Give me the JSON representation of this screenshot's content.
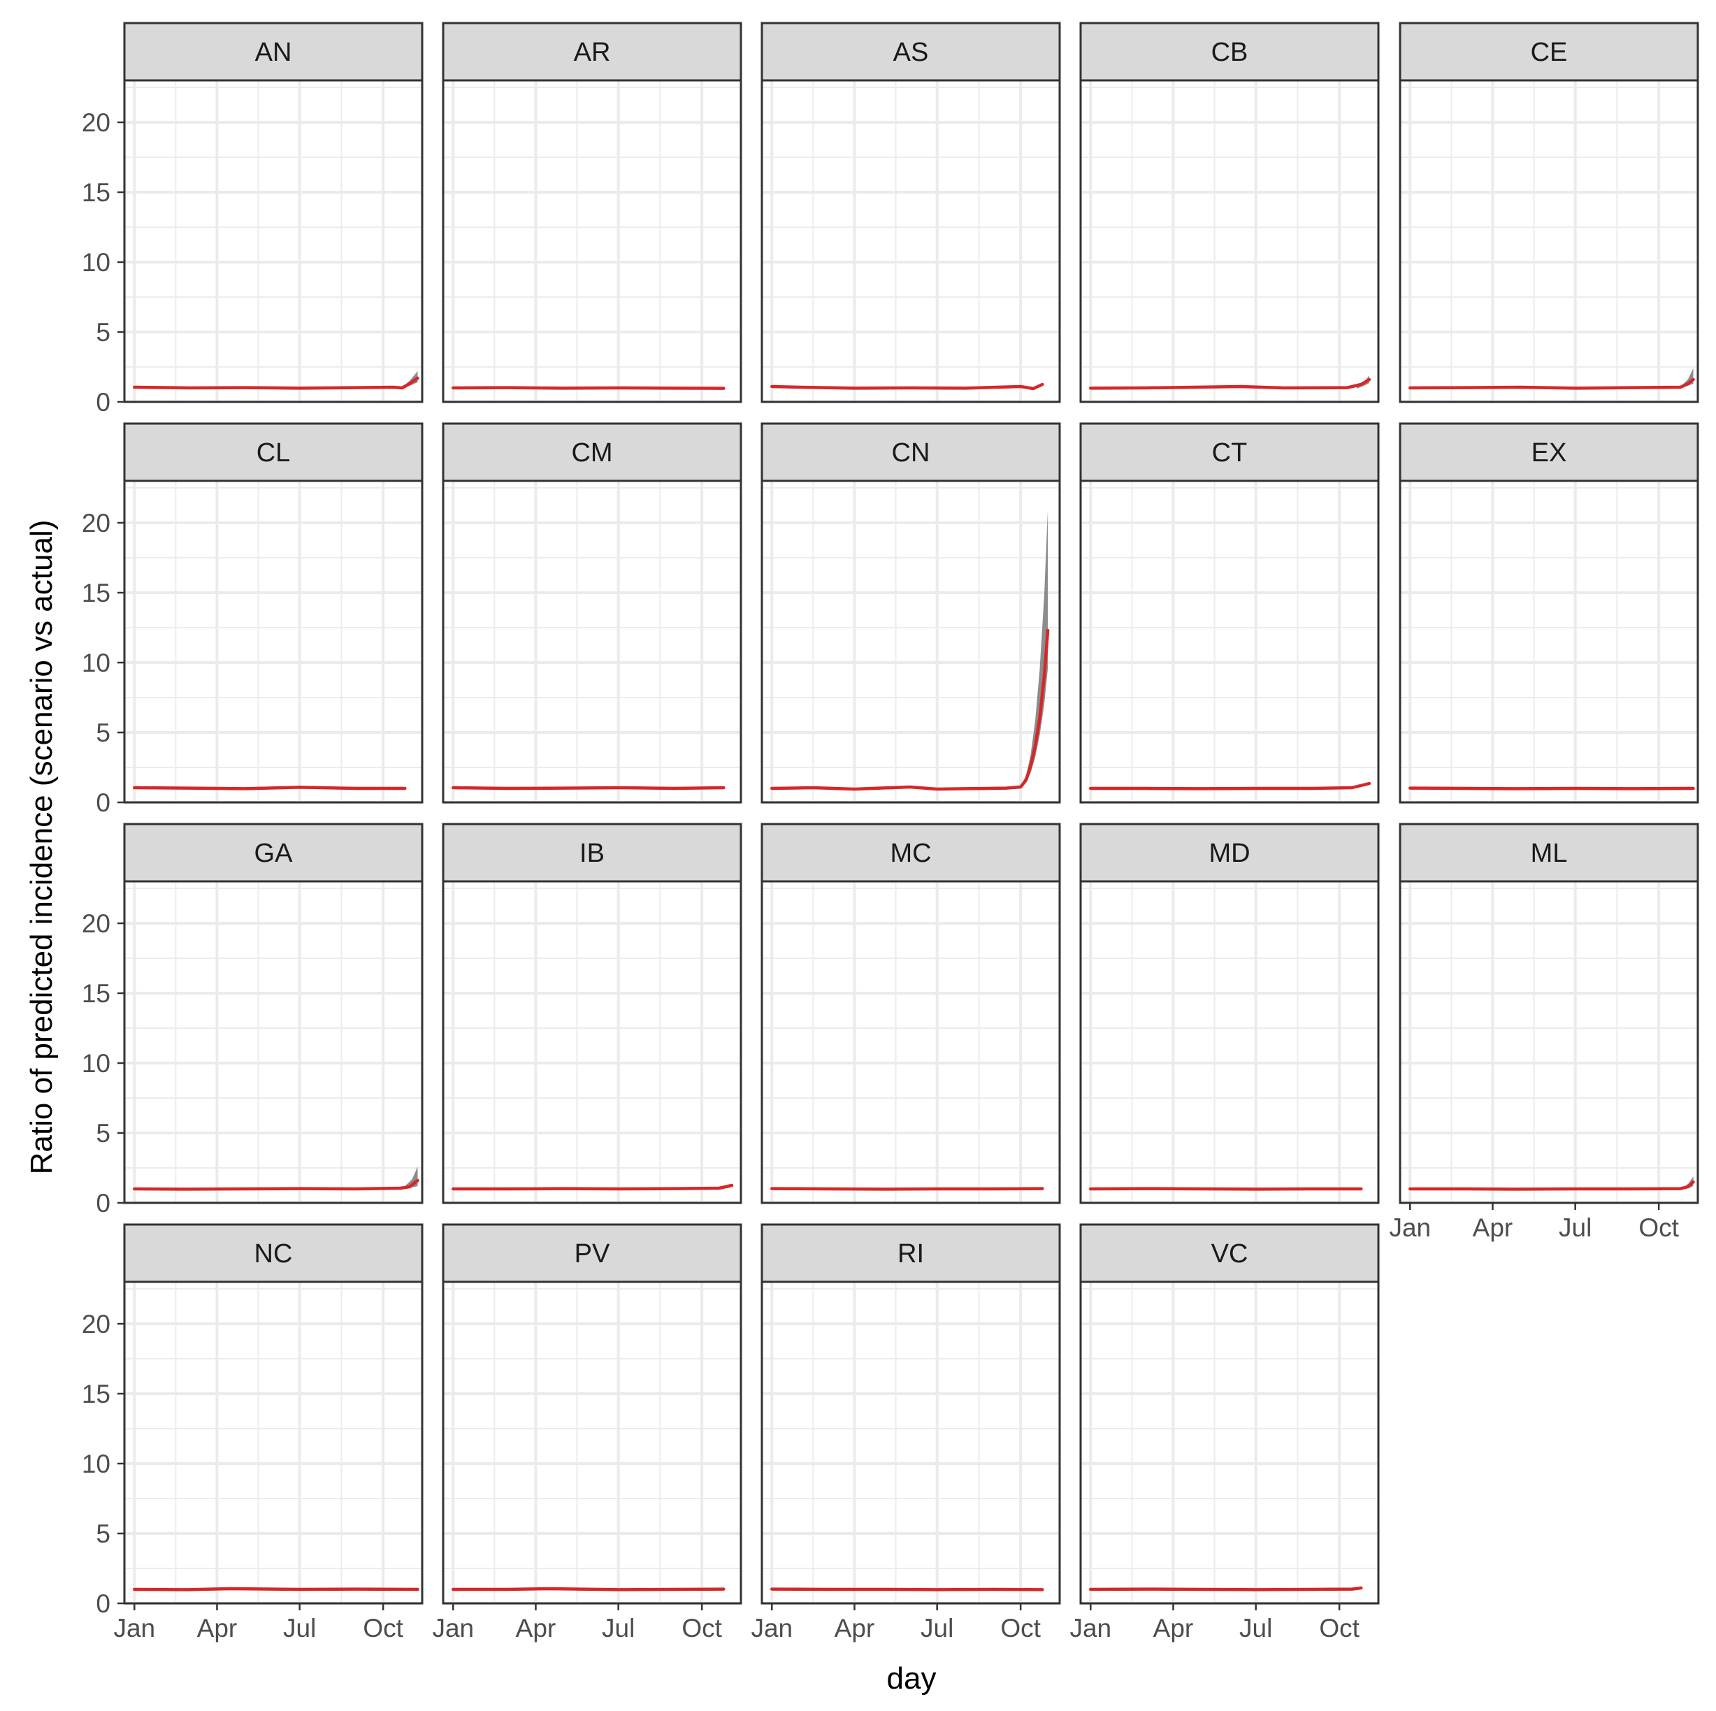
{
  "chart_data": {
    "type": "line",
    "layout": "facet-grid 4 rows x 5 columns, shared axes",
    "xlabel": "day",
    "ylabel": "Ratio of predicted incidence (scenario vs actual)",
    "x_ticks": [
      {
        "label": "Jan",
        "date": "2020-01-01"
      },
      {
        "label": "Apr",
        "date": "2020-04-01"
      },
      {
        "label": "Jul",
        "date": "2020-07-01"
      },
      {
        "label": "Oct",
        "date": "2020-10-01"
      }
    ],
    "x_range": [
      "2019-12-21",
      "2020-11-13"
    ],
    "y_ticks": [
      0,
      5,
      10,
      15,
      20
    ],
    "ylim": [
      0,
      23
    ],
    "grid": true,
    "line_color": "#d62728",
    "band_color": "#7f7f7f",
    "strip_fill": "#d9d9d9",
    "panels": [
      {
        "name": "AN",
        "end_date": "2020-11-08",
        "points": [
          [
            "2020-01-01",
            1.05
          ],
          [
            "2020-03-01",
            1.0
          ],
          [
            "2020-05-01",
            1.02
          ],
          [
            "2020-07-01",
            0.98
          ],
          [
            "2020-09-01",
            1.02
          ],
          [
            "2020-10-12",
            1.05
          ],
          [
            "2020-10-22",
            1.0
          ],
          [
            "2020-10-30",
            1.3
          ],
          [
            "2020-11-08",
            1.7
          ]
        ],
        "band_upper": [
          [
            "2020-10-22",
            1.05
          ],
          [
            "2020-10-30",
            1.5
          ],
          [
            "2020-11-08",
            2.2
          ]
        ],
        "band_lower": [
          [
            "2020-10-22",
            0.95
          ],
          [
            "2020-10-30",
            1.15
          ],
          [
            "2020-11-08",
            1.4
          ]
        ]
      },
      {
        "name": "AR",
        "end_date": "2020-10-25",
        "points": [
          [
            "2020-01-01",
            1.0
          ],
          [
            "2020-03-01",
            1.02
          ],
          [
            "2020-05-01",
            0.98
          ],
          [
            "2020-07-01",
            1.0
          ],
          [
            "2020-09-01",
            0.98
          ],
          [
            "2020-10-25",
            0.97
          ]
        ]
      },
      {
        "name": "AS",
        "end_date": "2020-10-25",
        "points": [
          [
            "2020-01-01",
            1.1
          ],
          [
            "2020-02-01",
            1.05
          ],
          [
            "2020-04-01",
            0.98
          ],
          [
            "2020-06-01",
            1.0
          ],
          [
            "2020-08-01",
            0.98
          ],
          [
            "2020-10-01",
            1.1
          ],
          [
            "2020-10-15",
            0.95
          ],
          [
            "2020-10-25",
            1.25
          ]
        ]
      },
      {
        "name": "CB",
        "end_date": "2020-11-03",
        "points": [
          [
            "2020-01-01",
            0.98
          ],
          [
            "2020-03-01",
            1.0
          ],
          [
            "2020-06-15",
            1.1
          ],
          [
            "2020-08-01",
            1.0
          ],
          [
            "2020-10-10",
            1.02
          ],
          [
            "2020-10-25",
            1.25
          ],
          [
            "2020-11-03",
            1.6
          ]
        ],
        "band_upper": [
          [
            "2020-10-20",
            1.1
          ],
          [
            "2020-10-28",
            1.4
          ],
          [
            "2020-11-03",
            1.9
          ]
        ],
        "band_lower": [
          [
            "2020-10-20",
            0.95
          ],
          [
            "2020-10-28",
            1.15
          ],
          [
            "2020-11-03",
            1.35
          ]
        ]
      },
      {
        "name": "CE",
        "end_date": "2020-11-08",
        "points": [
          [
            "2020-01-01",
            1.0
          ],
          [
            "2020-03-01",
            1.02
          ],
          [
            "2020-05-01",
            1.05
          ],
          [
            "2020-07-01",
            0.98
          ],
          [
            "2020-09-01",
            1.02
          ],
          [
            "2020-10-25",
            1.05
          ],
          [
            "2020-11-02",
            1.3
          ],
          [
            "2020-11-08",
            1.6
          ]
        ],
        "band_upper": [
          [
            "2020-10-25",
            1.1
          ],
          [
            "2020-11-02",
            1.6
          ],
          [
            "2020-11-08",
            2.4
          ]
        ],
        "band_lower": [
          [
            "2020-10-25",
            1.0
          ],
          [
            "2020-11-02",
            1.15
          ],
          [
            "2020-11-08",
            1.3
          ]
        ]
      },
      {
        "name": "CL",
        "end_date": "2020-10-25",
        "points": [
          [
            "2020-01-01",
            1.05
          ],
          [
            "2020-03-01",
            1.02
          ],
          [
            "2020-05-01",
            0.98
          ],
          [
            "2020-07-01",
            1.08
          ],
          [
            "2020-09-01",
            1.0
          ],
          [
            "2020-10-25",
            1.0
          ]
        ]
      },
      {
        "name": "CM",
        "end_date": "2020-10-25",
        "points": [
          [
            "2020-01-01",
            1.05
          ],
          [
            "2020-03-01",
            1.0
          ],
          [
            "2020-05-01",
            1.02
          ],
          [
            "2020-07-01",
            1.05
          ],
          [
            "2020-09-01",
            1.0
          ],
          [
            "2020-10-25",
            1.05
          ]
        ]
      },
      {
        "name": "CN",
        "end_date": "2020-10-31",
        "points": [
          [
            "2020-01-01",
            1.0
          ],
          [
            "2020-02-15",
            1.05
          ],
          [
            "2020-04-01",
            0.95
          ],
          [
            "2020-06-01",
            1.1
          ],
          [
            "2020-07-01",
            0.95
          ],
          [
            "2020-09-15",
            1.02
          ],
          [
            "2020-10-01",
            1.1
          ],
          [
            "2020-10-07",
            1.6
          ],
          [
            "2020-10-12",
            2.6
          ],
          [
            "2020-10-17",
            4.0
          ],
          [
            "2020-10-22",
            6.0
          ],
          [
            "2020-10-27",
            9.0
          ],
          [
            "2020-10-31",
            12.3
          ]
        ],
        "band_upper": [
          [
            "2020-10-01",
            1.2
          ],
          [
            "2020-10-07",
            1.9
          ],
          [
            "2020-10-12",
            3.4
          ],
          [
            "2020-10-17",
            5.8
          ],
          [
            "2020-10-22",
            9.5
          ],
          [
            "2020-10-27",
            14.8
          ],
          [
            "2020-10-31",
            21.0
          ]
        ],
        "band_lower": [
          [
            "2020-10-01",
            1.0
          ],
          [
            "2020-10-07",
            1.4
          ],
          [
            "2020-10-12",
            2.1
          ],
          [
            "2020-10-17",
            3.2
          ],
          [
            "2020-10-22",
            4.8
          ],
          [
            "2020-10-27",
            7.0
          ],
          [
            "2020-10-31",
            9.6
          ]
        ]
      },
      {
        "name": "CT",
        "end_date": "2020-11-03",
        "points": [
          [
            "2020-01-01",
            1.0
          ],
          [
            "2020-03-01",
            1.0
          ],
          [
            "2020-05-01",
            0.98
          ],
          [
            "2020-07-01",
            1.0
          ],
          [
            "2020-09-01",
            1.0
          ],
          [
            "2020-10-15",
            1.05
          ],
          [
            "2020-11-03",
            1.35
          ]
        ]
      },
      {
        "name": "EX",
        "end_date": "2020-11-08",
        "points": [
          [
            "2020-01-01",
            1.02
          ],
          [
            "2020-03-01",
            1.0
          ],
          [
            "2020-05-01",
            0.98
          ],
          [
            "2020-07-01",
            1.0
          ],
          [
            "2020-09-01",
            0.98
          ],
          [
            "2020-11-08",
            1.0
          ]
        ]
      },
      {
        "name": "GA",
        "end_date": "2020-11-08",
        "points": [
          [
            "2020-01-01",
            1.0
          ],
          [
            "2020-03-01",
            0.98
          ],
          [
            "2020-05-01",
            1.0
          ],
          [
            "2020-07-01",
            1.02
          ],
          [
            "2020-09-01",
            1.0
          ],
          [
            "2020-10-20",
            1.05
          ],
          [
            "2020-10-30",
            1.15
          ],
          [
            "2020-11-08",
            1.6
          ]
        ],
        "band_upper": [
          [
            "2020-10-25",
            1.2
          ],
          [
            "2020-11-02",
            1.7
          ],
          [
            "2020-11-08",
            2.6
          ]
        ],
        "band_lower": [
          [
            "2020-10-25",
            1.0
          ],
          [
            "2020-11-02",
            1.1
          ],
          [
            "2020-11-08",
            1.2
          ]
        ]
      },
      {
        "name": "IB",
        "end_date": "2020-11-03",
        "points": [
          [
            "2020-01-01",
            1.0
          ],
          [
            "2020-03-01",
            1.0
          ],
          [
            "2020-05-01",
            1.02
          ],
          [
            "2020-07-01",
            1.0
          ],
          [
            "2020-09-01",
            1.02
          ],
          [
            "2020-10-20",
            1.05
          ],
          [
            "2020-11-03",
            1.25
          ]
        ]
      },
      {
        "name": "MC",
        "end_date": "2020-10-25",
        "points": [
          [
            "2020-01-01",
            1.02
          ],
          [
            "2020-03-01",
            1.0
          ],
          [
            "2020-05-01",
            0.98
          ],
          [
            "2020-07-01",
            1.0
          ],
          [
            "2020-09-01",
            1.0
          ],
          [
            "2020-10-25",
            1.02
          ]
        ]
      },
      {
        "name": "MD",
        "end_date": "2020-10-25",
        "points": [
          [
            "2020-01-01",
            1.0
          ],
          [
            "2020-03-01",
            1.02
          ],
          [
            "2020-05-01",
            1.0
          ],
          [
            "2020-07-01",
            0.98
          ],
          [
            "2020-09-01",
            1.0
          ],
          [
            "2020-10-25",
            1.0
          ]
        ]
      },
      {
        "name": "ML",
        "end_date": "2020-11-08",
        "points": [
          [
            "2020-01-01",
            1.0
          ],
          [
            "2020-03-01",
            1.0
          ],
          [
            "2020-05-01",
            0.98
          ],
          [
            "2020-07-01",
            1.0
          ],
          [
            "2020-09-01",
            1.0
          ],
          [
            "2020-10-25",
            1.02
          ],
          [
            "2020-11-02",
            1.15
          ],
          [
            "2020-11-08",
            1.5
          ]
        ],
        "band_upper": [
          [
            "2020-10-28",
            1.1
          ],
          [
            "2020-11-03",
            1.4
          ],
          [
            "2020-11-08",
            1.9
          ]
        ],
        "band_lower": [
          [
            "2020-10-28",
            1.0
          ],
          [
            "2020-11-03",
            1.05
          ],
          [
            "2020-11-08",
            1.2
          ]
        ]
      },
      {
        "name": "NC",
        "end_date": "2020-11-08",
        "points": [
          [
            "2020-01-01",
            1.0
          ],
          [
            "2020-03-01",
            0.98
          ],
          [
            "2020-04-15",
            1.05
          ],
          [
            "2020-07-01",
            1.0
          ],
          [
            "2020-09-01",
            1.02
          ],
          [
            "2020-11-08",
            1.0
          ]
        ]
      },
      {
        "name": "PV",
        "end_date": "2020-10-25",
        "points": [
          [
            "2020-01-01",
            1.0
          ],
          [
            "2020-03-01",
            1.0
          ],
          [
            "2020-04-15",
            1.05
          ],
          [
            "2020-07-01",
            0.98
          ],
          [
            "2020-09-01",
            1.0
          ],
          [
            "2020-10-25",
            1.02
          ]
        ]
      },
      {
        "name": "RI",
        "end_date": "2020-10-25",
        "points": [
          [
            "2020-01-01",
            1.02
          ],
          [
            "2020-03-01",
            1.0
          ],
          [
            "2020-05-01",
            1.0
          ],
          [
            "2020-07-01",
            0.98
          ],
          [
            "2020-09-01",
            1.0
          ],
          [
            "2020-10-25",
            0.98
          ]
        ]
      },
      {
        "name": "VC",
        "end_date": "2020-10-25",
        "points": [
          [
            "2020-01-01",
            1.0
          ],
          [
            "2020-03-01",
            1.02
          ],
          [
            "2020-05-01",
            1.0
          ],
          [
            "2020-07-01",
            0.98
          ],
          [
            "2020-09-01",
            1.0
          ],
          [
            "2020-10-15",
            1.02
          ],
          [
            "2020-10-25",
            1.1
          ]
        ]
      }
    ]
  }
}
